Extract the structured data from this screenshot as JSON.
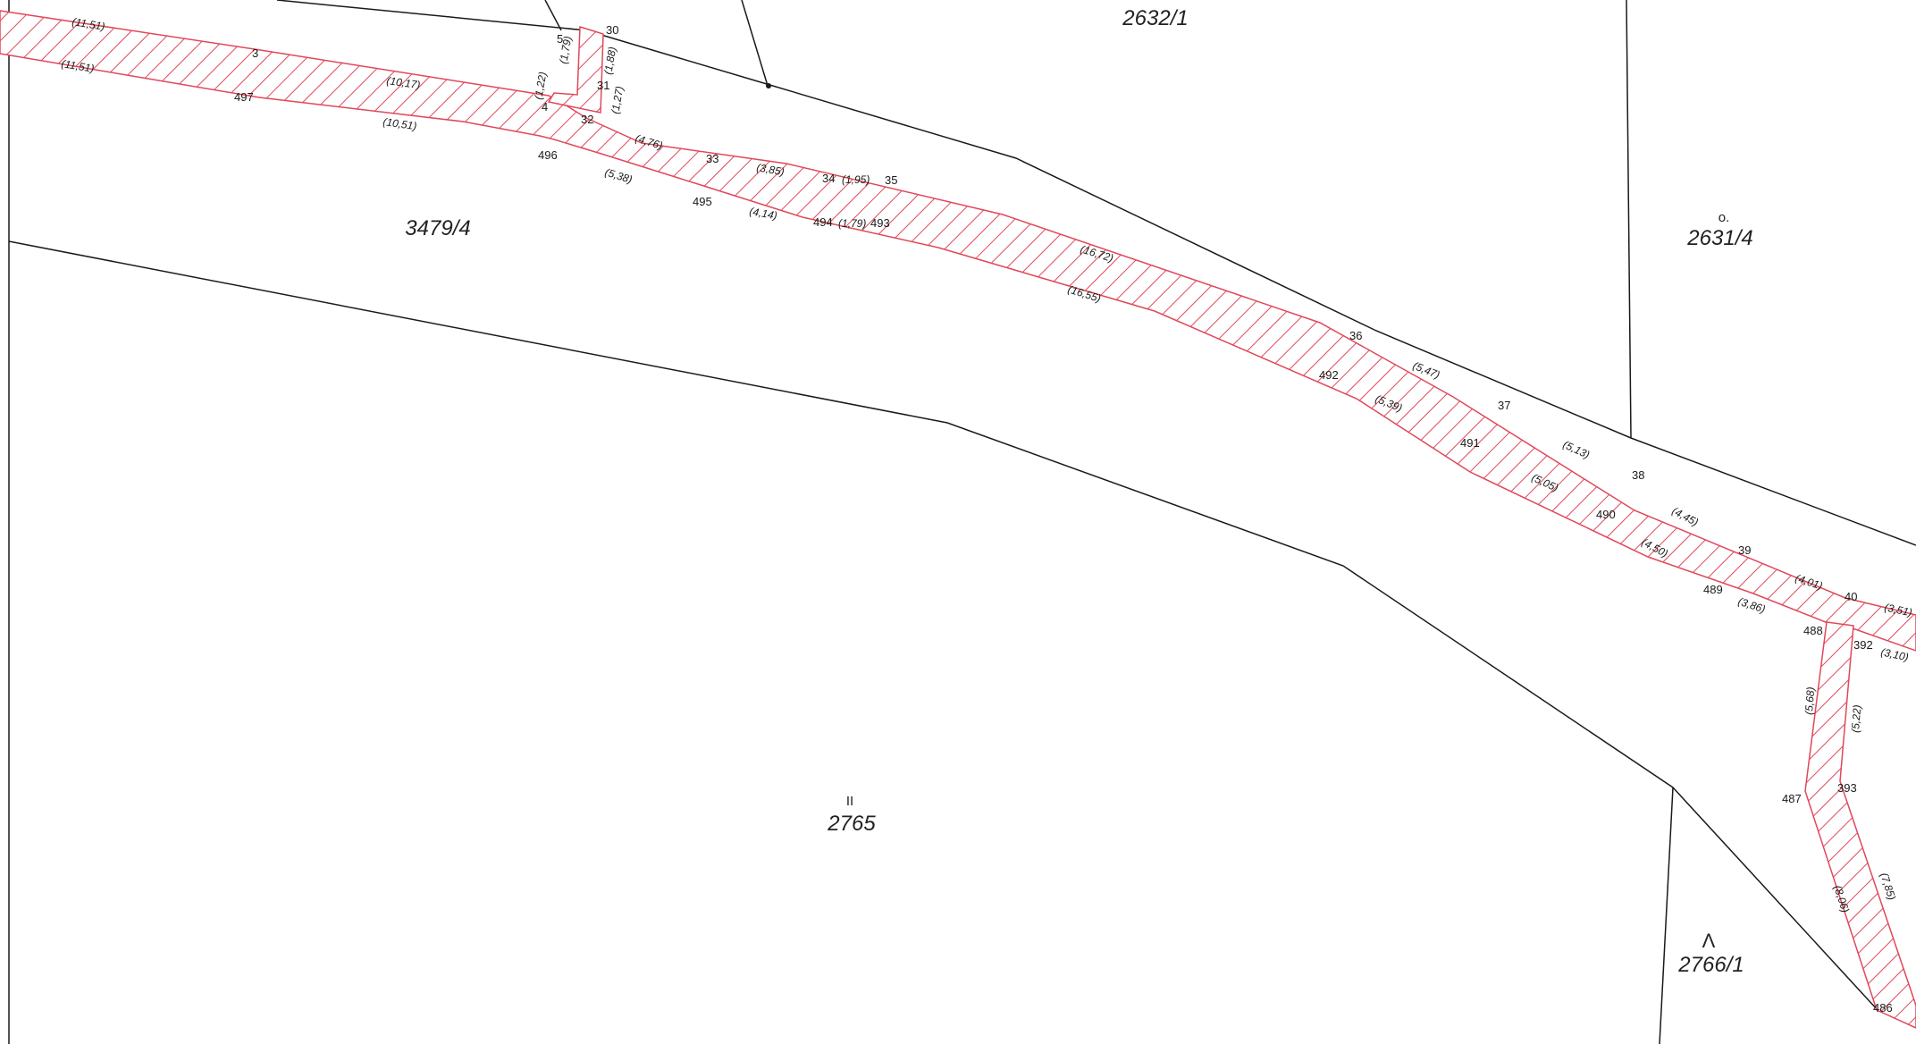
{
  "parcels": [
    {
      "id": "2632/1",
      "label": "2632/1"
    },
    {
      "id": "2631/4",
      "label": "2631/4",
      "mark": "o."
    },
    {
      "id": "3479/4",
      "label": "3479/4"
    },
    {
      "id": "2765",
      "label": "2765",
      "mark": "II"
    },
    {
      "id": "2766/1",
      "label": "2766/1",
      "mark": "Λ"
    }
  ],
  "points": [
    "3",
    "4",
    "5",
    "30",
    "31",
    "32",
    "33",
    "34",
    "35",
    "36",
    "37",
    "38",
    "39",
    "40",
    "392",
    "393",
    "486",
    "487",
    "488",
    "489",
    "490",
    "491",
    "492",
    "493",
    "494",
    "495",
    "496",
    "497"
  ],
  "dimensions": [
    "(11,51)",
    "(11,51)",
    "(10,17)",
    "(10,51)",
    "(1,22)",
    "(1,79)",
    "(1,88)",
    "(1,27)",
    "(4,76)",
    "(5,38)",
    "(3,85)",
    "(4,14)",
    "(1,95)",
    "(1,79)",
    "(16,72)",
    "(16,55)",
    "(5,47)",
    "(5,39)",
    "(5,13)",
    "(5,05)",
    "(4,45)",
    "(4,50)",
    "(4,01)",
    "(3,86)",
    "(3,51)",
    "(3,10)",
    "(5,68)",
    "(5,22)",
    "(8,06)",
    "(7,85)"
  ],
  "colors": {
    "boundary": "#1a1a1a",
    "strip": "#e0485a",
    "background": "#ffffff"
  }
}
